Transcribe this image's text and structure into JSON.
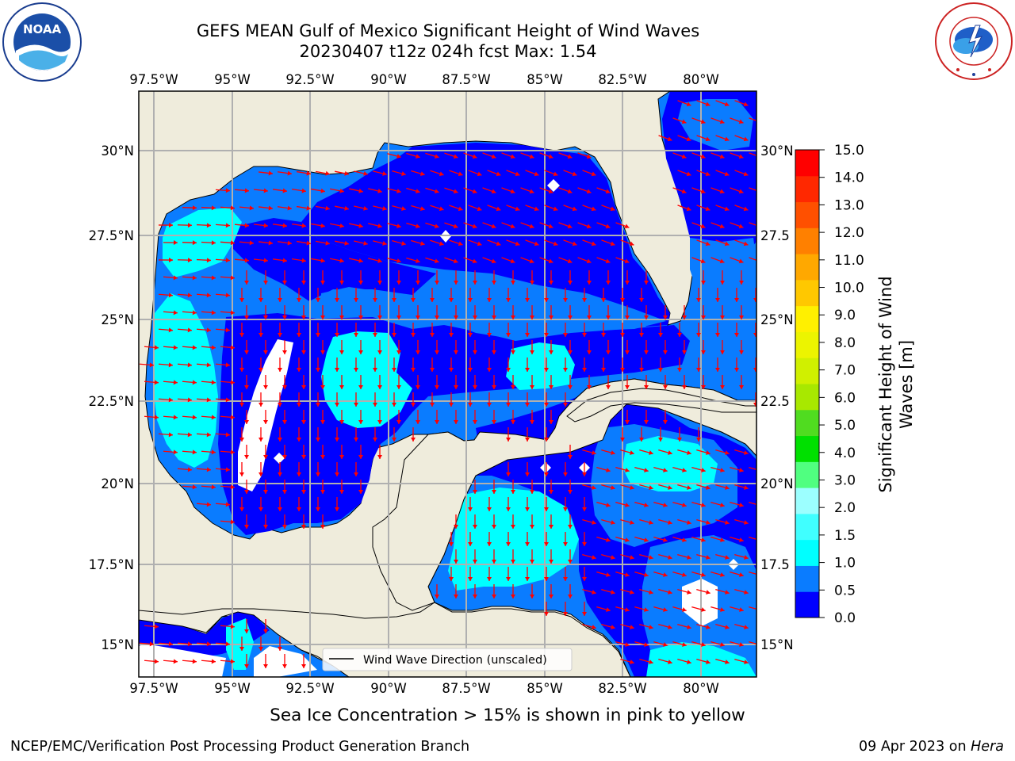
{
  "title_line1": "GEFS MEAN Gulf of Mexico Significant Height of Wind Waves",
  "title_line2": "20230407 t12z 024h fcst   Max: 1.54",
  "lon_ticks": [
    "97.5°W",
    "95°W",
    "92.5°W",
    "90°W",
    "87.5°W",
    "85°W",
    "82.5°W",
    "80°W"
  ],
  "lat_ticks_left": [
    "30°N",
    "27.5°N",
    "25°N",
    "22.5°N",
    "20°N",
    "17.5°N",
    "15°N"
  ],
  "lat_ticks_right": [
    "30°N",
    "27.5",
    "25°N",
    "22.5",
    "20°N",
    "17.5",
    "15°N"
  ],
  "legend_label": "Wind Wave Direction (unscaled)",
  "colorbar": {
    "label_line1": "Significant Height of Wind",
    "label_line2": "Waves [m]",
    "ticks": [
      "15.0",
      "14.0",
      "13.0",
      "12.0",
      "11.0",
      "10.0",
      "9.0",
      "8.0",
      "7.0",
      "6.0",
      "5.0",
      "4.0",
      "3.0",
      "2.0",
      "1.5",
      "1.0",
      "0.5",
      "0.0"
    ],
    "bins": [
      {
        "range": "0.0-0.5",
        "color": "#0000ff"
      },
      {
        "range": "0.5-1.0",
        "color": "#0a7cff"
      },
      {
        "range": "1.0-1.5",
        "color": "#00ffff"
      },
      {
        "range": "1.5-2.0",
        "color": "#40ffff"
      },
      {
        "range": "2.0-3.0",
        "color": "#9cffff"
      },
      {
        "range": "3.0-4.0",
        "color": "#50ff80"
      },
      {
        "range": "4.0-5.0",
        "color": "#00e000"
      },
      {
        "range": "5.0-6.0",
        "color": "#50dc20"
      },
      {
        "range": "6.0-7.0",
        "color": "#a8e800"
      },
      {
        "range": "7.0-8.0",
        "color": "#d0f000"
      },
      {
        "range": "8.0-9.0",
        "color": "#ecf400"
      },
      {
        "range": "9.0-10.0",
        "color": "#fff000"
      },
      {
        "range": "10.0-11.0",
        "color": "#ffc800"
      },
      {
        "range": "11.0-12.0",
        "color": "#ffa800"
      },
      {
        "range": "12.0-13.0",
        "color": "#ff8000"
      },
      {
        "range": "13.0-14.0",
        "color": "#ff5000"
      },
      {
        "range": "14.0-15.0",
        "color": "#ff2800"
      },
      {
        "range": "15.0+",
        "color": "#ff0000"
      }
    ]
  },
  "ice_note": "Sea Ice Concentration > 15% is shown in pink to yellow",
  "credit": "NCEP/EMC/Verification Post Processing Product Generation Branch",
  "date_text": "09 Apr 2023 on ",
  "machine": "Hera",
  "logos": {
    "left": {
      "name": "noaa-logo",
      "text": "NOAA",
      "ring_text": "NATIONAL OCEANIC AND ATMOSPHERIC ADMINISTRATION · U.S. DEPARTMENT OF COMMERCE"
    },
    "right": {
      "name": "nws-logo",
      "ring_text": "NATIONAL WEATHER SERVICE"
    }
  },
  "colors": {
    "land": "#efecdc",
    "arrow": "#ff0000",
    "grid": "#b0b0b0"
  }
}
